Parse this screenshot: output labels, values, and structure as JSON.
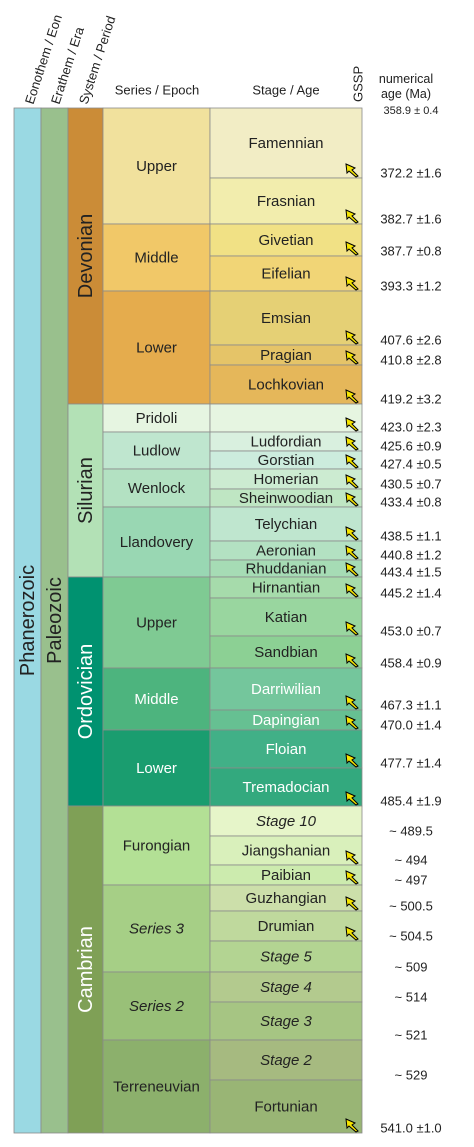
{
  "headers": [
    "Eonothem / Eon",
    "Erathem / Era",
    "System / Period",
    "Series / Epoch",
    "Stage / Age",
    "GSSP",
    "numerical age (Ma)"
  ],
  "top_age": "358.9 ± 0.4",
  "eon": {
    "name": "Phanerozoic",
    "color": "#9ad9e3"
  },
  "era": {
    "name": "Paleozoic",
    "color": "#99c08d"
  },
  "periods": [
    {
      "name": "Devonian",
      "color": "#cb8c37",
      "series": [
        {
          "name": "Upper",
          "color": "#f1e19d",
          "stages": [
            {
              "name": "Famennian",
              "color": "#f2edc5",
              "age": "372.2 ±1.6",
              "gssp": true
            },
            {
              "name": "Frasnian",
              "color": "#f2edad",
              "age": "382.7 ±1.6",
              "gssp": true
            }
          ]
        },
        {
          "name": "Middle",
          "color": "#f1c868",
          "stages": [
            {
              "name": "Givetian",
              "color": "#f1e185",
              "age": "387.7 ±0.8",
              "gssp": true
            },
            {
              "name": "Eifelian",
              "color": "#f1d576",
              "age": "393.3 ±1.2",
              "gssp": true
            }
          ]
        },
        {
          "name": "Lower",
          "color": "#e5ac4d",
          "stages": [
            {
              "name": "Emsian",
              "color": "#e5d075",
              "age": "407.6 ±2.6",
              "gssp": true
            },
            {
              "name": "Pragian",
              "color": "#e5c468",
              "age": "410.8 ±2.8",
              "gssp": true
            },
            {
              "name": "Lochkovian",
              "color": "#e5b75a",
              "age": "419.2 ±3.2",
              "gssp": true
            }
          ]
        }
      ]
    },
    {
      "name": "Silurian",
      "color": "#b3e1b6",
      "series": [
        {
          "name": "Pridoli",
          "color": "#e6f5e1",
          "stages": [
            {
              "name": null,
              "color": "#e6f5e1",
              "age": "423.0 ±2.3",
              "gssp": true
            }
          ]
        },
        {
          "name": "Ludlow",
          "color": "#bfe6cf",
          "stages": [
            {
              "name": "Ludfordian",
              "color": "#d9f0df",
              "age": "425.6 ±0.9",
              "gssp": true
            },
            {
              "name": "Gorstian",
              "color": "#ccecdd",
              "age": "427.4 ±0.5",
              "gssp": true
            }
          ]
        },
        {
          "name": "Wenlock",
          "color": "#b3e1c2",
          "stages": [
            {
              "name": "Homerian",
              "color": "#ccebd1",
              "age": "430.5 ±0.7",
              "gssp": true
            },
            {
              "name": "Sheinwoodian",
              "color": "#bfe6c3",
              "age": "433.4 ±0.8",
              "gssp": true
            }
          ]
        },
        {
          "name": "Llandovery",
          "color": "#99d7b3",
          "stages": [
            {
              "name": "Telychian",
              "color": "#bfe6cf",
              "age": "438.5 ±1.1",
              "gssp": true
            },
            {
              "name": "Aeronian",
              "color": "#b3e1c2",
              "age": "440.8 ±1.2",
              "gssp": true
            },
            {
              "name": "Rhuddanian",
              "color": "#a6dcb5",
              "age": "443.4 ±1.5",
              "gssp": true
            }
          ]
        }
      ]
    },
    {
      "name": "Ordovician",
      "color": "#009270",
      "light_text": true,
      "series": [
        {
          "name": "Upper",
          "color": "#7fca93",
          "stages": [
            {
              "name": "Hirnantian",
              "color": "#a6dbab",
              "age": "445.2 ±1.4",
              "gssp": true
            },
            {
              "name": "Katian",
              "color": "#99d69f",
              "age": "453.0 ±0.7",
              "gssp": true
            },
            {
              "name": "Sandbian",
              "color": "#8cd094",
              "age": "458.4 ±0.9",
              "gssp": true
            }
          ]
        },
        {
          "name": "Middle",
          "color": "#4db47e",
          "light_text": true,
          "stages": [
            {
              "name": "Darriwilian",
              "color": "#74c69c",
              "light_text": true,
              "age": "467.3 ±1.1",
              "gssp": true
            },
            {
              "name": "Dapingian",
              "color": "#66c092",
              "light_text": true,
              "age": "470.0 ±1.4",
              "gssp": true
            }
          ]
        },
        {
          "name": "Lower",
          "color": "#1a9d6f",
          "light_text": true,
          "stages": [
            {
              "name": "Floian",
              "color": "#41b087",
              "light_text": true,
              "age": "477.7 ±1.4",
              "gssp": true
            },
            {
              "name": "Tremadocian",
              "color": "#33a97e",
              "light_text": true,
              "age": "485.4 ±1.9",
              "gssp": true
            }
          ]
        }
      ]
    },
    {
      "name": "Cambrian",
      "color": "#7fa056",
      "light_text": true,
      "series": [
        {
          "name": "Furongian",
          "color": "#b3e095",
          "stages": [
            {
              "name": "Stage 10",
              "color": "#e6f5c9",
              "italic": true,
              "age": "~ 489.5",
              "gssp": false
            },
            {
              "name": "Jiangshanian",
              "color": "#d9f0bb",
              "age": "~ 494",
              "gssp": true
            },
            {
              "name": "Paibian",
              "color": "#ccebae",
              "age": "~ 497",
              "gssp": true
            }
          ]
        },
        {
          "name": "Series 3",
          "color": "#a6cf86",
          "italic": true,
          "stages": [
            {
              "name": "Guzhangian",
              "color": "#ccdfaa",
              "age": "~ 500.5",
              "gssp": true
            },
            {
              "name": "Drumian",
              "color": "#bfd99d",
              "age": "~ 504.5",
              "gssp": true
            },
            {
              "name": "Stage 5",
              "color": "#b3d492",
              "italic": true,
              "age": "~ 509",
              "gssp": false
            }
          ]
        },
        {
          "name": "Series 2",
          "color": "#99c078",
          "italic": true,
          "stages": [
            {
              "name": "Stage 4",
              "color": "#b3ca8e",
              "italic": true,
              "age": "~ 514",
              "gssp": false
            },
            {
              "name": "Stage 3",
              "color": "#a6c583",
              "italic": true,
              "age": "~ 521",
              "gssp": false
            }
          ]
        },
        {
          "name": "Terreneuvian",
          "color": "#8cb06c",
          "stages": [
            {
              "name": "Stage 2",
              "color": "#a6ba80",
              "italic": true,
              "age": "~ 529",
              "gssp": false
            },
            {
              "name": "Fortunian",
              "color": "#99b575",
              "age": "541.0 ±1.0",
              "gssp": true
            }
          ]
        }
      ]
    }
  ]
}
